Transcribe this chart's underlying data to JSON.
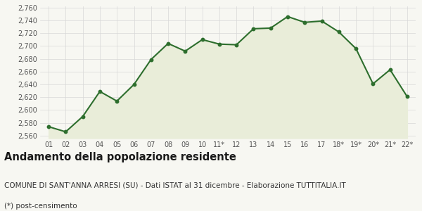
{
  "x_labels": [
    "01",
    "02",
    "03",
    "04",
    "05",
    "06",
    "07",
    "08",
    "09",
    "10",
    "11*",
    "12",
    "13",
    "14",
    "15",
    "16",
    "17",
    "18*",
    "19*",
    "20*",
    "21*",
    "22*"
  ],
  "y_values": [
    2574,
    2566,
    2590,
    2629,
    2614,
    2640,
    2679,
    2704,
    2692,
    2710,
    2703,
    2702,
    2727,
    2728,
    2746,
    2737,
    2739,
    2722,
    2696,
    2641,
    2663,
    2621
  ],
  "line_color": "#2d6e2d",
  "fill_color": "#e9edd9",
  "marker": "o",
  "marker_size": 3.2,
  "linewidth": 1.5,
  "ylim": [
    2556,
    2762
  ],
  "yticks": [
    2560,
    2580,
    2600,
    2620,
    2640,
    2660,
    2680,
    2700,
    2720,
    2740,
    2760
  ],
  "bg_color": "#f7f7f2",
  "plot_bg_color": "#f7f7f2",
  "grid_color": "#d8d8d8",
  "title": "Andamento della popolazione residente",
  "subtitle": "COMUNE DI SANT'ANNA ARRESI (SU) - Dati ISTAT al 31 dicembre - Elaborazione TUTTITALIA.IT",
  "footnote": "(*) post-censimento",
  "title_fontsize": 10.5,
  "subtitle_fontsize": 7.5,
  "footnote_fontsize": 7.5,
  "tick_fontsize": 7.0
}
